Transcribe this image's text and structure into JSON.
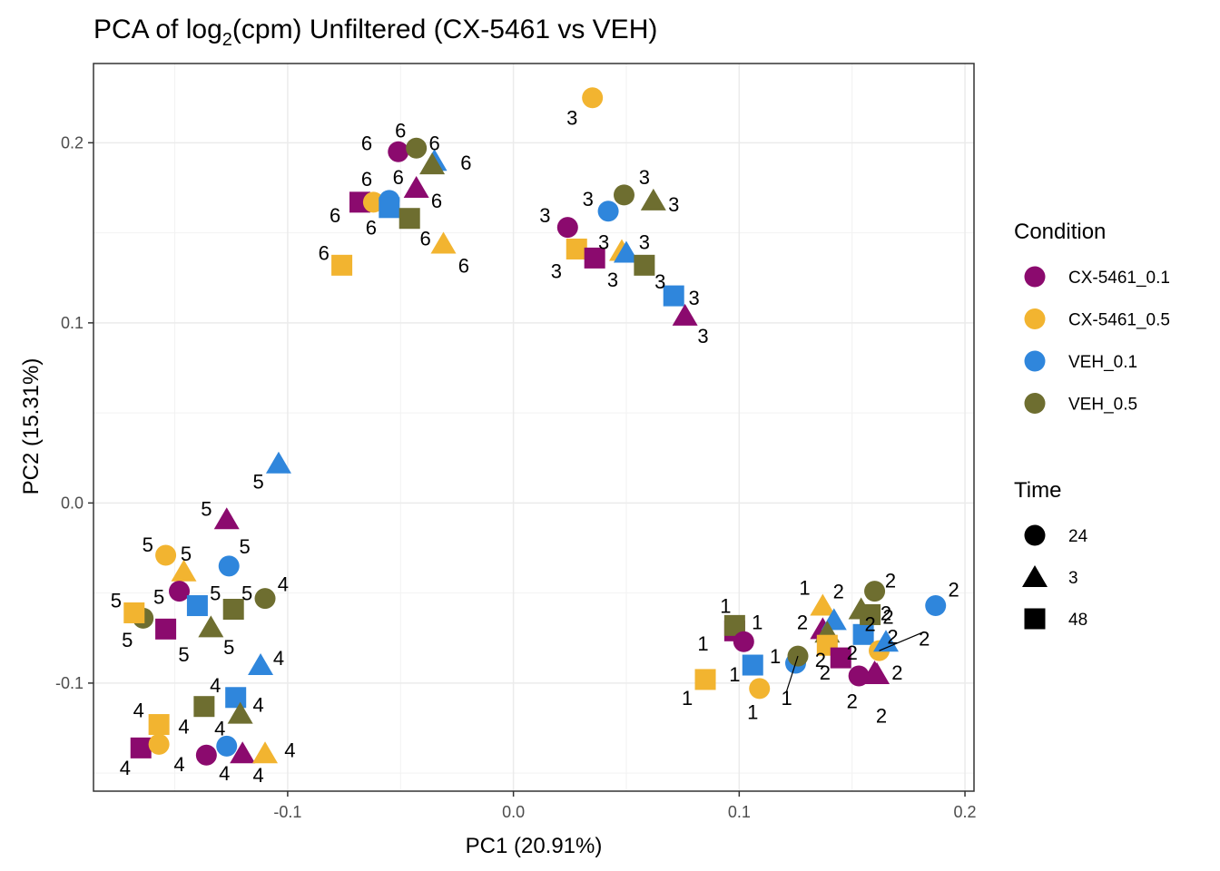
{
  "chart_data": {
    "type": "scatter",
    "title_prefix": "PCA of log",
    "title_subscript": "2",
    "title_suffix": "(cpm) Unfiltered (CX-5461 vs VEH)",
    "xlabel": "PC1 (20.91%)",
    "ylabel": "PC2 (15.31%)",
    "xlim": [
      -0.186,
      0.204
    ],
    "ylim": [
      -0.16,
      0.244
    ],
    "xticks": [
      -0.1,
      0.0,
      0.1,
      0.2
    ],
    "xtick_labels": [
      "-0.1",
      "0.0",
      "0.1",
      "0.2"
    ],
    "yticks": [
      -0.1,
      0.0,
      0.1,
      0.2
    ],
    "ytick_labels": [
      "-0.1",
      "0.0",
      "0.1",
      "0.2"
    ],
    "grid": true,
    "legend_position": "right",
    "colors": {
      "CX-5461_0.1": "#8b0a6e",
      "CX-5461_0.5": "#f2b430",
      "VEH_0.1": "#2f86dc",
      "VEH_0.5": "#6e6e30"
    },
    "shapes": {
      "24": "circle",
      "3": "triangle",
      "48": "square"
    },
    "legends": {
      "condition_title": "Condition",
      "conditions": [
        "CX-5461_0.1",
        "CX-5461_0.5",
        "VEH_0.1",
        "VEH_0.5"
      ],
      "time_title": "Time",
      "times": [
        "24",
        "3",
        "48"
      ]
    },
    "points": [
      {
        "x": 0.035,
        "y": 0.225,
        "condition": "CX-5461_0.5",
        "time": "24",
        "label": "3",
        "lx": 0.026,
        "ly": 0.214
      },
      {
        "x": 0.024,
        "y": 0.153,
        "condition": "CX-5461_0.1",
        "time": "24",
        "label": "3",
        "lx": 0.014,
        "ly": 0.16
      },
      {
        "x": 0.042,
        "y": 0.162,
        "condition": "VEH_0.1",
        "time": "24",
        "label": "3",
        "lx": 0.033,
        "ly": 0.169
      },
      {
        "x": 0.049,
        "y": 0.171,
        "condition": "VEH_0.5",
        "time": "24",
        "label": "3",
        "lx": 0.058,
        "ly": 0.181
      },
      {
        "x": 0.062,
        "y": 0.168,
        "condition": "VEH_0.5",
        "time": "3",
        "label": "3",
        "lx": 0.071,
        "ly": 0.166
      },
      {
        "x": 0.028,
        "y": 0.141,
        "condition": "CX-5461_0.5",
        "time": "48",
        "label": "3",
        "lx": 0.019,
        "ly": 0.129
      },
      {
        "x": 0.036,
        "y": 0.136,
        "condition": "CX-5461_0.1",
        "time": "48",
        "label": "3",
        "lx": 0.04,
        "ly": 0.145
      },
      {
        "x": 0.048,
        "y": 0.14,
        "condition": "CX-5461_0.5",
        "time": "3",
        "label": "3",
        "lx": 0.044,
        "ly": 0.124
      },
      {
        "x": 0.05,
        "y": 0.139,
        "condition": "VEH_0.1",
        "time": "3",
        "label": "3",
        "lx": 0.058,
        "ly": 0.145
      },
      {
        "x": 0.058,
        "y": 0.132,
        "condition": "VEH_0.5",
        "time": "48",
        "label": "3",
        "lx": 0.065,
        "ly": 0.123
      },
      {
        "x": 0.071,
        "y": 0.115,
        "condition": "VEH_0.1",
        "time": "48",
        "label": "3",
        "lx": 0.08,
        "ly": 0.114
      },
      {
        "x": 0.076,
        "y": 0.104,
        "condition": "CX-5461_0.1",
        "time": "3",
        "label": "3",
        "lx": 0.084,
        "ly": 0.093
      },
      {
        "x": -0.051,
        "y": 0.195,
        "condition": "CX-5461_0.1",
        "time": "24",
        "label": "6",
        "lx": -0.065,
        "ly": 0.2
      },
      {
        "x": -0.043,
        "y": 0.197,
        "condition": "VEH_0.5",
        "time": "24",
        "label": "6",
        "lx": -0.05,
        "ly": 0.207
      },
      {
        "x": -0.035,
        "y": 0.19,
        "condition": "VEH_0.1",
        "time": "3",
        "label": "6",
        "lx": -0.035,
        "ly": 0.2
      },
      {
        "x": -0.036,
        "y": 0.188,
        "condition": "VEH_0.5",
        "time": "3",
        "label": "6",
        "lx": -0.021,
        "ly": 0.189
      },
      {
        "x": -0.043,
        "y": 0.175,
        "condition": "CX-5461_0.1",
        "time": "3",
        "label": "6",
        "lx": -0.034,
        "ly": 0.168
      },
      {
        "x": -0.068,
        "y": 0.167,
        "condition": "CX-5461_0.1",
        "time": "48",
        "label": "6",
        "lx": -0.065,
        "ly": 0.18
      },
      {
        "x": -0.062,
        "y": 0.167,
        "condition": "CX-5461_0.5",
        "time": "24",
        "label": "6",
        "lx": -0.051,
        "ly": 0.181
      },
      {
        "x": -0.055,
        "y": 0.168,
        "condition": "VEH_0.1",
        "time": "24",
        "label": "6",
        "lx": -0.063,
        "ly": 0.153
      },
      {
        "x": -0.055,
        "y": 0.164,
        "condition": "VEH_0.1",
        "time": "48",
        "label": "6",
        "lx": -0.079,
        "ly": 0.16
      },
      {
        "x": -0.046,
        "y": 0.158,
        "condition": "VEH_0.5",
        "time": "48",
        "label": "6",
        "lx": -0.039,
        "ly": 0.147
      },
      {
        "x": -0.031,
        "y": 0.144,
        "condition": "CX-5461_0.5",
        "time": "3",
        "label": "6",
        "lx": -0.022,
        "ly": 0.132
      },
      {
        "x": -0.076,
        "y": 0.132,
        "condition": "CX-5461_0.5",
        "time": "48",
        "label": "6",
        "lx": -0.084,
        "ly": 0.139
      },
      {
        "x": -0.104,
        "y": 0.022,
        "condition": "VEH_0.1",
        "time": "3",
        "label": "5",
        "lx": -0.113,
        "ly": 0.012
      },
      {
        "x": -0.127,
        "y": -0.009,
        "condition": "CX-5461_0.1",
        "time": "3",
        "label": "5",
        "lx": -0.136,
        "ly": -0.003
      },
      {
        "x": -0.154,
        "y": -0.029,
        "condition": "CX-5461_0.5",
        "time": "24",
        "label": "5",
        "lx": -0.162,
        "ly": -0.023
      },
      {
        "x": -0.146,
        "y": -0.038,
        "condition": "CX-5461_0.5",
        "time": "3",
        "label": "5",
        "lx": -0.145,
        "ly": -0.028
      },
      {
        "x": -0.126,
        "y": -0.035,
        "condition": "VEH_0.1",
        "time": "24",
        "label": "5",
        "lx": -0.119,
        "ly": -0.024
      },
      {
        "x": -0.148,
        "y": -0.049,
        "condition": "CX-5461_0.1",
        "time": "24",
        "label": "5",
        "lx": -0.157,
        "ly": -0.052
      },
      {
        "x": -0.14,
        "y": -0.057,
        "condition": "VEH_0.1",
        "time": "48",
        "label": "5",
        "lx": -0.132,
        "ly": -0.05
      },
      {
        "x": -0.124,
        "y": -0.059,
        "condition": "VEH_0.5",
        "time": "48",
        "label": "5",
        "lx": -0.118,
        "ly": -0.05
      },
      {
        "x": -0.164,
        "y": -0.064,
        "condition": "VEH_0.5",
        "time": "24",
        "label": "5",
        "lx": -0.176,
        "ly": -0.054
      },
      {
        "x": -0.168,
        "y": -0.061,
        "condition": "CX-5461_0.5",
        "time": "48",
        "label": "5",
        "lx": -0.171,
        "ly": -0.076
      },
      {
        "x": -0.154,
        "y": -0.07,
        "condition": "CX-5461_0.1",
        "time": "48",
        "label": "5",
        "lx": -0.146,
        "ly": -0.084
      },
      {
        "x": -0.134,
        "y": -0.069,
        "condition": "VEH_0.5",
        "time": "3",
        "label": "5",
        "lx": -0.126,
        "ly": -0.08
      },
      {
        "x": -0.11,
        "y": -0.053,
        "condition": "VEH_0.5",
        "time": "24",
        "label": "4",
        "lx": -0.102,
        "ly": -0.045
      },
      {
        "x": -0.112,
        "y": -0.09,
        "condition": "VEH_0.1",
        "time": "3",
        "label": "4",
        "lx": -0.104,
        "ly": -0.086
      },
      {
        "x": -0.137,
        "y": -0.113,
        "condition": "VEH_0.5",
        "time": "48",
        "label": "4",
        "lx": -0.132,
        "ly": -0.101
      },
      {
        "x": -0.123,
        "y": -0.108,
        "condition": "VEH_0.1",
        "time": "48",
        "label": "4",
        "lx": -0.113,
        "ly": -0.112
      },
      {
        "x": -0.121,
        "y": -0.117,
        "condition": "VEH_0.5",
        "time": "3",
        "label": "4",
        "lx": -0.13,
        "ly": -0.125
      },
      {
        "x": -0.157,
        "y": -0.123,
        "condition": "CX-5461_0.5",
        "time": "48",
        "label": "4",
        "lx": -0.166,
        "ly": -0.115
      },
      {
        "x": -0.127,
        "y": -0.135,
        "condition": "VEH_0.1",
        "time": "24",
        "label": "4",
        "lx": -0.146,
        "ly": -0.124
      },
      {
        "x": -0.165,
        "y": -0.136,
        "condition": "CX-5461_0.1",
        "time": "48",
        "label": "4",
        "lx": -0.172,
        "ly": -0.147
      },
      {
        "x": -0.157,
        "y": -0.134,
        "condition": "CX-5461_0.5",
        "time": "24",
        "label": "4",
        "lx": -0.148,
        "ly": -0.145
      },
      {
        "x": -0.136,
        "y": -0.14,
        "condition": "CX-5461_0.1",
        "time": "24",
        "label": "4",
        "lx": -0.128,
        "ly": -0.15
      },
      {
        "x": -0.12,
        "y": -0.139,
        "condition": "CX-5461_0.1",
        "time": "3",
        "label": "4",
        "lx": -0.113,
        "ly": -0.151
      },
      {
        "x": -0.11,
        "y": -0.139,
        "condition": "CX-5461_0.5",
        "time": "3",
        "label": "4",
        "lx": -0.099,
        "ly": -0.137
      },
      {
        "x": 0.098,
        "y": -0.071,
        "condition": "CX-5461_0.1",
        "time": "48",
        "label": "1",
        "lx": 0.094,
        "ly": -0.057
      },
      {
        "x": 0.098,
        "y": -0.068,
        "condition": "VEH_0.5",
        "time": "48",
        "label": "1",
        "lx": 0.084,
        "ly": -0.078
      },
      {
        "x": 0.102,
        "y": -0.077,
        "condition": "CX-5461_0.1",
        "time": "24",
        "label": "1",
        "lx": 0.108,
        "ly": -0.066
      },
      {
        "x": 0.085,
        "y": -0.098,
        "condition": "CX-5461_0.5",
        "time": "48",
        "label": "1",
        "lx": 0.077,
        "ly": -0.108
      },
      {
        "x": 0.106,
        "y": -0.09,
        "condition": "VEH_0.1",
        "time": "48",
        "label": "1",
        "lx": 0.098,
        "ly": -0.095
      },
      {
        "x": 0.109,
        "y": -0.103,
        "condition": "CX-5461_0.5",
        "time": "24",
        "label": "1",
        "lx": 0.106,
        "ly": -0.116
      },
      {
        "x": 0.125,
        "y": -0.089,
        "condition": "VEH_0.1",
        "time": "24",
        "label": "1",
        "lx": 0.116,
        "ly": -0.085
      },
      {
        "x": 0.126,
        "y": -0.085,
        "condition": "VEH_0.5",
        "time": "24",
        "label": "1",
        "lx": 0.121,
        "ly": -0.108,
        "leader": true
      },
      {
        "x": 0.137,
        "y": -0.057,
        "condition": "CX-5461_0.5",
        "time": "3",
        "label": "1",
        "lx": 0.129,
        "ly": -0.047
      },
      {
        "x": 0.137,
        "y": -0.07,
        "condition": "CX-5461_0.1",
        "time": "3",
        "label": "2",
        "lx": 0.128,
        "ly": -0.066
      },
      {
        "x": 0.142,
        "y": -0.065,
        "condition": "VEH_0.1",
        "time": "3",
        "label": "2",
        "lx": 0.144,
        "ly": -0.049
      },
      {
        "x": 0.139,
        "y": -0.072,
        "condition": "VEH_0.5",
        "time": "3",
        "label": "2",
        "lx": 0.136,
        "ly": -0.087
      },
      {
        "x": 0.139,
        "y": -0.079,
        "condition": "CX-5461_0.5",
        "time": "48",
        "label": "2",
        "lx": 0.15,
        "ly": -0.083
      },
      {
        "x": 0.145,
        "y": -0.086,
        "condition": "CX-5461_0.1",
        "time": "48",
        "label": "2",
        "lx": 0.138,
        "ly": -0.094
      },
      {
        "x": 0.154,
        "y": -0.059,
        "condition": "VEH_0.5",
        "time": "3",
        "label": "2",
        "lx": 0.158,
        "ly": -0.067
      },
      {
        "x": 0.155,
        "y": -0.073,
        "condition": "VEH_0.1",
        "time": "48",
        "label": "2",
        "lx": 0.165,
        "ly": -0.061
      },
      {
        "x": 0.158,
        "y": -0.062,
        "condition": "VEH_0.5",
        "time": "48",
        "label": "2",
        "lx": 0.166,
        "ly": -0.063
      },
      {
        "x": 0.16,
        "y": -0.049,
        "condition": "VEH_0.5",
        "time": "24",
        "label": "2",
        "lx": 0.167,
        "ly": -0.043
      },
      {
        "x": 0.162,
        "y": -0.082,
        "condition": "CX-5461_0.5",
        "time": "24",
        "label": "2",
        "lx": 0.182,
        "ly": -0.075,
        "leader": true
      },
      {
        "x": 0.165,
        "y": -0.077,
        "condition": "VEH_0.1",
        "time": "3",
        "label": "2",
        "lx": 0.168,
        "ly": -0.074
      },
      {
        "x": 0.153,
        "y": -0.096,
        "condition": "CX-5461_0.1",
        "time": "24",
        "label": "2",
        "lx": 0.15,
        "ly": -0.11
      },
      {
        "x": 0.161,
        "y": -0.095,
        "condition": "CX-5461_0.1",
        "time": "3",
        "label": "2",
        "lx": 0.17,
        "ly": -0.094
      },
      {
        "x": 0.16,
        "y": -0.094,
        "condition": "CX-5461_0.1",
        "time": "3",
        "label": "2",
        "lx": 0.163,
        "ly": -0.118
      },
      {
        "x": 0.187,
        "y": -0.057,
        "condition": "VEH_0.1",
        "time": "24",
        "label": "2",
        "lx": 0.195,
        "ly": -0.048
      }
    ]
  }
}
